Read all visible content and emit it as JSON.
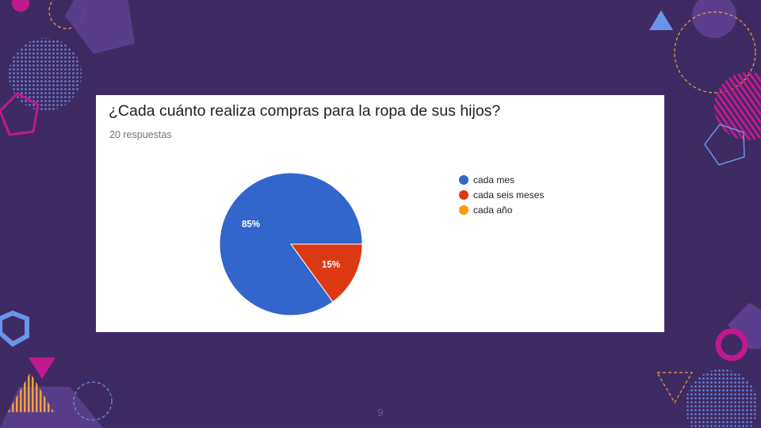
{
  "slide": {
    "page_number": "9",
    "background": "#3f2b63"
  },
  "card": {
    "title": "¿Cada cuánto realiza compras para la ropa de sus hijos?",
    "subtitle": "20 respuestas"
  },
  "chart_data": {
    "type": "pie",
    "title": "¿Cada cuánto realiza compras para la ropa de sus hijos?",
    "subtitle": "20 respuestas",
    "legend_position": "right",
    "slices": [
      {
        "label": "cada mes",
        "value": 85,
        "color": "#3366cc",
        "display": "85%"
      },
      {
        "label": "cada seis meses",
        "value": 15,
        "color": "#dc3912",
        "display": "15%"
      },
      {
        "label": "cada año",
        "value": 0,
        "color": "#ff9900",
        "display": ""
      }
    ]
  }
}
